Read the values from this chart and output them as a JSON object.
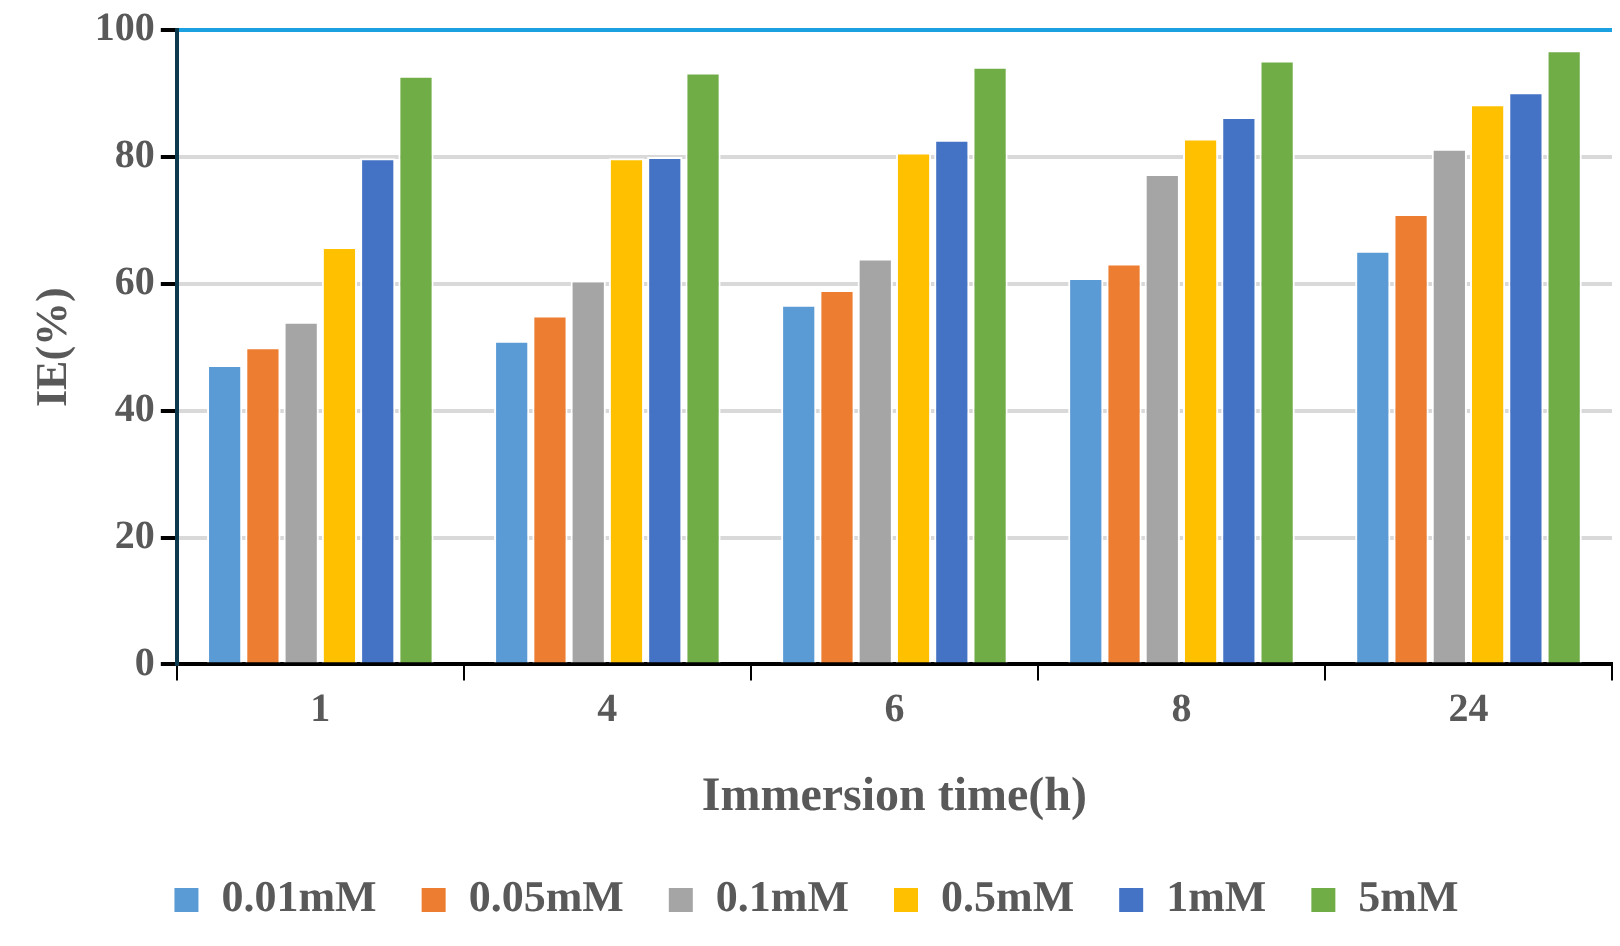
{
  "chart_data": {
    "type": "bar",
    "xlabel": "Immersion time(h)",
    "ylabel": "IE(%)",
    "categories": [
      "1",
      "4",
      "6",
      "8",
      "24"
    ],
    "series": [
      {
        "name": "0.01mM",
        "color": "#5b9bd5",
        "values": [
          47.2,
          51,
          56.7,
          60.9,
          65.2
        ]
      },
      {
        "name": "0.05mM",
        "color": "#ed7d31",
        "values": [
          50,
          55,
          59,
          63.2,
          71
        ]
      },
      {
        "name": "0.1mM",
        "color": "#a5a5a5",
        "values": [
          54,
          60.5,
          64,
          77.3,
          81.3
        ]
      },
      {
        "name": "0.5mM",
        "color": "#ffc000",
        "values": [
          65.8,
          79.8,
          80.7,
          82.9,
          88.3
        ]
      },
      {
        "name": "1mM",
        "color": "#4472c4",
        "values": [
          79.8,
          80,
          82.7,
          86.3,
          90.2
        ]
      },
      {
        "name": "5mM",
        "color": "#70ad47",
        "values": [
          92.8,
          93.3,
          94.2,
          95.2,
          96.8
        ]
      }
    ],
    "ylim": [
      0,
      100
    ],
    "yticks": [
      0,
      20,
      40,
      60,
      80,
      100
    ],
    "grid": "y",
    "legend": "bottom"
  }
}
